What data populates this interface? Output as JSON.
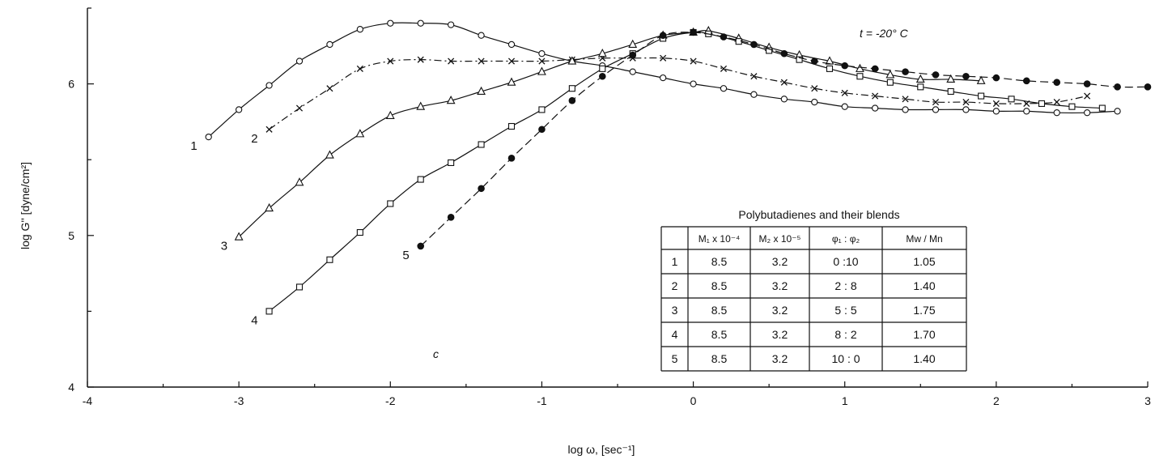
{
  "chart_data": {
    "type": "line",
    "xlabel": "log ω, [sec⁻¹]",
    "ylabel": "log G'' [dyne/cm²]",
    "xlim": [
      -4,
      3
    ],
    "ylim": [
      4,
      6.5
    ],
    "x_ticks": [
      "-4",
      "-3",
      "-2",
      "-1",
      "0",
      "1",
      "2",
      "3"
    ],
    "y_ticks": [
      "4",
      "5",
      "6"
    ],
    "grid": false,
    "annotations": {
      "temperature": "t = -20° C",
      "panel_letter": "c",
      "table_title": "Polybutadienes and their blends"
    },
    "table": {
      "headers": [
        "",
        "M₁ x 10⁻⁴",
        "M₂ x 10⁻⁵",
        "φ₁ : φ₂",
        "Mw / Mn"
      ],
      "rows": [
        [
          "1",
          "8.5",
          "3.2",
          "0 :10",
          "1.05"
        ],
        [
          "2",
          "8.5",
          "3.2",
          "2 : 8",
          "1.40"
        ],
        [
          "3",
          "8.5",
          "3.2",
          "5 : 5",
          "1.75"
        ],
        [
          "4",
          "8.5",
          "3.2",
          "8 : 2",
          "1.70"
        ],
        [
          "5",
          "8.5",
          "3.2",
          "10 : 0",
          "1.40"
        ]
      ]
    },
    "series": [
      {
        "label": "1",
        "marker": "circle-open",
        "dash": "solid",
        "x": [
          -3.2,
          -3.0,
          -2.8,
          -2.6,
          -2.4,
          -2.2,
          -2.0,
          -1.8,
          -1.6,
          -1.4,
          -1.2,
          -1.0,
          -0.8,
          -0.6,
          -0.4,
          -0.2,
          0.0,
          0.2,
          0.4,
          0.6,
          0.8,
          1.0,
          1.2,
          1.4,
          1.6,
          1.8,
          2.0,
          2.2,
          2.4,
          2.6,
          2.8
        ],
        "y": [
          5.65,
          5.83,
          5.99,
          6.15,
          6.26,
          6.36,
          6.4,
          6.4,
          6.39,
          6.32,
          6.26,
          6.2,
          6.15,
          6.12,
          6.08,
          6.04,
          6.0,
          5.97,
          5.93,
          5.9,
          5.88,
          5.85,
          5.84,
          5.83,
          5.83,
          5.83,
          5.82,
          5.82,
          5.81,
          5.81,
          5.82
        ]
      },
      {
        "label": "2",
        "marker": "cross",
        "dash": "dashdot",
        "x": [
          -2.8,
          -2.6,
          -2.4,
          -2.2,
          -2.0,
          -1.8,
          -1.6,
          -1.4,
          -1.2,
          -1.0,
          -0.8,
          -0.6,
          -0.4,
          -0.2,
          0.0,
          0.2,
          0.4,
          0.6,
          0.8,
          1.0,
          1.2,
          1.4,
          1.6,
          1.8,
          2.0,
          2.2,
          2.4,
          2.6
        ],
        "y": [
          5.7,
          5.84,
          5.97,
          6.1,
          6.15,
          6.16,
          6.15,
          6.15,
          6.15,
          6.15,
          6.16,
          6.17,
          6.17,
          6.17,
          6.15,
          6.1,
          6.05,
          6.01,
          5.97,
          5.94,
          5.92,
          5.9,
          5.88,
          5.88,
          5.87,
          5.87,
          5.88,
          5.92
        ]
      },
      {
        "label": "3",
        "marker": "triangle-open",
        "dash": "solid",
        "x": [
          -3.0,
          -2.8,
          -2.6,
          -2.4,
          -2.2,
          -2.0,
          -1.8,
          -1.6,
          -1.4,
          -1.2,
          -1.0,
          -0.8,
          -0.6,
          -0.4,
          -0.2,
          0.0,
          0.1,
          0.3,
          0.5,
          0.7,
          0.9,
          1.1,
          1.3,
          1.5,
          1.7,
          1.9
        ],
        "y": [
          4.99,
          5.18,
          5.35,
          5.53,
          5.67,
          5.79,
          5.85,
          5.89,
          5.95,
          6.01,
          6.08,
          6.15,
          6.2,
          6.26,
          6.32,
          6.34,
          6.35,
          6.3,
          6.24,
          6.19,
          6.15,
          6.1,
          6.06,
          6.03,
          6.03,
          6.02
        ]
      },
      {
        "label": "4",
        "marker": "square-open",
        "dash": "solid",
        "x": [
          -2.8,
          -2.6,
          -2.4,
          -2.2,
          -2.0,
          -1.8,
          -1.6,
          -1.4,
          -1.2,
          -1.0,
          -0.8,
          -0.6,
          -0.4,
          -0.2,
          0.0,
          0.1,
          0.3,
          0.5,
          0.7,
          0.9,
          1.1,
          1.3,
          1.5,
          1.7,
          1.9,
          2.1,
          2.3,
          2.5,
          2.7
        ],
        "y": [
          4.5,
          4.66,
          4.84,
          5.02,
          5.21,
          5.37,
          5.48,
          5.6,
          5.72,
          5.83,
          5.97,
          6.1,
          6.2,
          6.3,
          6.34,
          6.33,
          6.28,
          6.22,
          6.16,
          6.1,
          6.05,
          6.01,
          5.98,
          5.95,
          5.92,
          5.9,
          5.87,
          5.85,
          5.84
        ]
      },
      {
        "label": "5",
        "marker": "circle-filled",
        "dash": "dashed",
        "x": [
          -1.8,
          -1.6,
          -1.4,
          -1.2,
          -1.0,
          -0.8,
          -0.6,
          -0.4,
          -0.2,
          0.0,
          0.2,
          0.4,
          0.6,
          0.8,
          1.0,
          1.2,
          1.4,
          1.6,
          1.8,
          2.0,
          2.2,
          2.4,
          2.6,
          2.8,
          3.0
        ],
        "y": [
          4.93,
          5.12,
          5.31,
          5.51,
          5.7,
          5.89,
          6.05,
          6.19,
          6.32,
          6.34,
          6.31,
          6.26,
          6.2,
          6.15,
          6.12,
          6.1,
          6.08,
          6.06,
          6.05,
          6.04,
          6.02,
          6.01,
          6.0,
          5.98,
          5.98
        ]
      }
    ]
  }
}
